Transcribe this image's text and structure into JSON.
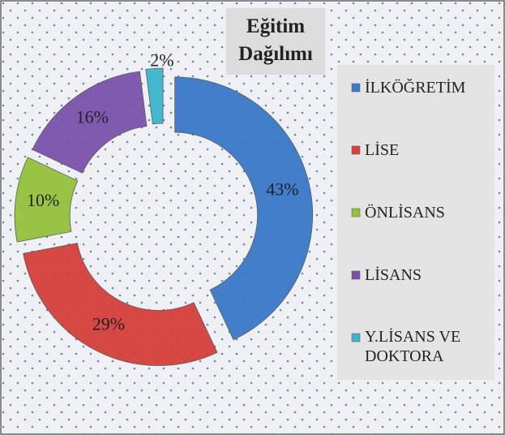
{
  "chart_data": {
    "type": "donut",
    "title": "Eğitim Dağılımı",
    "categories": [
      "İLKÖĞRETİM",
      "LİSE",
      "ÖNLİSANS",
      "LİSANS",
      "Y.LİSANS VE DOKTORA"
    ],
    "values": [
      43,
      29,
      10,
      16,
      2
    ],
    "value_labels": [
      "43%",
      "29%",
      "10%",
      "16%",
      "2%"
    ],
    "colors": [
      "#3a78c9",
      "#d4403a",
      "#95c13c",
      "#7b52ab",
      "#3cb6cb"
    ],
    "legend": "right"
  }
}
